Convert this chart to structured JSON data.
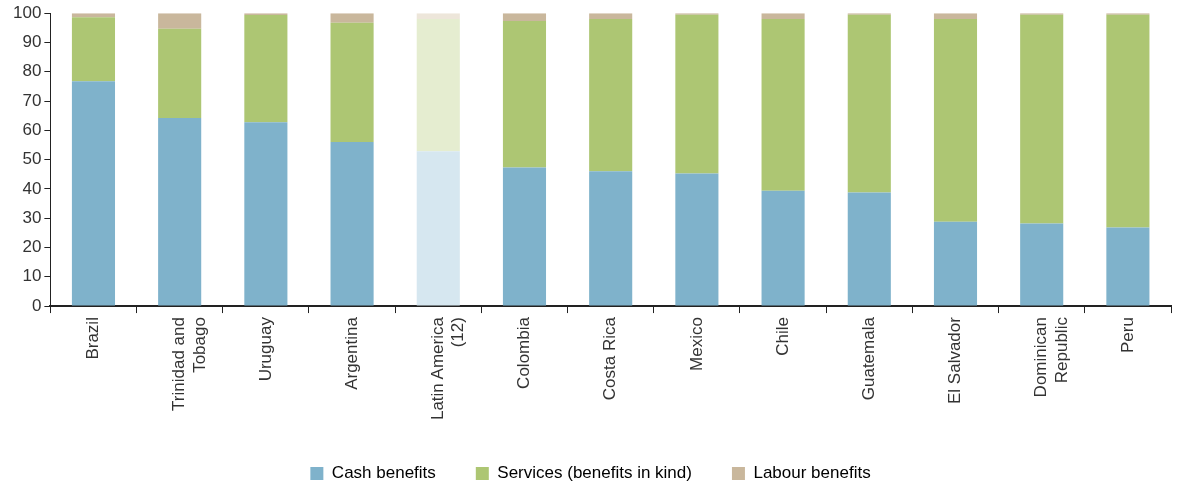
{
  "chart_data": {
    "type": "bar",
    "stacked": true,
    "categories": [
      "Brazil",
      "Trinidad and Tobago",
      "Uruguay",
      "Argentina",
      "Latin America (12)",
      "Colombia",
      "Costa Rica",
      "Mexico",
      "Chile",
      "Guatemala",
      "El Salvador",
      "Dominican Republic",
      "Peru"
    ],
    "series": [
      {
        "name": "Cash benefits",
        "color": "#7fb2cb",
        "colors": [
          "#7fb2cb",
          "#7fb2cb",
          "#7fb2cb",
          "#7fb2cb",
          "#d6e7f0",
          "#7fb2cb",
          "#7fb2cb",
          "#7fb2cb",
          "#7fb2cb",
          "#7fb2cb",
          "#7fb2cb",
          "#7fb2cb",
          "#7fb2cb"
        ],
        "values": [
          76.8,
          64.2,
          62.8,
          56.0,
          52.9,
          47.3,
          46.0,
          45.3,
          39.4,
          38.8,
          28.8,
          28.2,
          26.8
        ]
      },
      {
        "name": "Services (benefits in kind)",
        "color": "#adc673",
        "colors": [
          "#adc673",
          "#adc673",
          "#adc673",
          "#adc673",
          "#e5edd0",
          "#adc673",
          "#adc673",
          "#adc673",
          "#adc673",
          "#adc673",
          "#adc673",
          "#adc673",
          "#adc673"
        ],
        "values": [
          21.8,
          30.5,
          36.6,
          40.7,
          45.1,
          50.0,
          52.0,
          54.2,
          58.6,
          60.7,
          69.2,
          71.3,
          72.7
        ]
      },
      {
        "name": "Labour benefits",
        "color": "#c9b79c",
        "colors": [
          "#c9b79c",
          "#c9b79c",
          "#c9b79c",
          "#c9b79c",
          "#ede6da",
          "#c9b79c",
          "#c9b79c",
          "#c9b79c",
          "#c9b79c",
          "#c9b79c",
          "#c9b79c",
          "#c9b79c",
          "#c9b79c"
        ],
        "values": [
          1.4,
          5.3,
          0.6,
          3.3,
          2.0,
          2.7,
          2.0,
          0.5,
          2.0,
          0.5,
          2.0,
          0.5,
          0.5
        ]
      }
    ],
    "ylim": [
      0,
      100
    ],
    "yticks": [
      0,
      10,
      20,
      30,
      40,
      50,
      60,
      70,
      80,
      90,
      100
    ],
    "grid": false,
    "legend": "bottom"
  }
}
